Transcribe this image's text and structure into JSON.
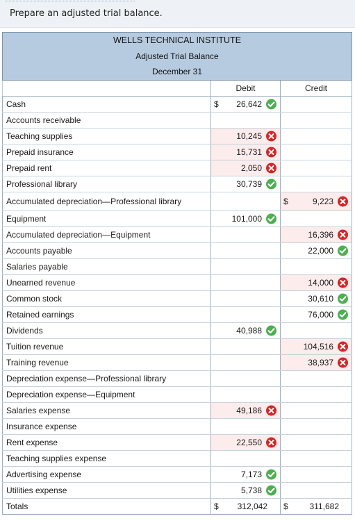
{
  "prompt": "Prepare an adjusted trial balance.",
  "header": {
    "company": "WELLS TECHNICAL INSTITUTE",
    "statement": "Adjusted Trial Balance",
    "date": "December 31"
  },
  "columns": {
    "debit": "Debit",
    "credit": "Credit"
  },
  "rows": [
    {
      "label": "Cash",
      "debit": "26,642",
      "debit_dollar": "$",
      "debit_mark": "check"
    },
    {
      "label": "Accounts receivable"
    },
    {
      "label": "Teaching supplies",
      "debit": "10,245",
      "debit_mark": "x"
    },
    {
      "label": "Prepaid insurance",
      "debit": "15,731",
      "debit_mark": "x"
    },
    {
      "label": "Prepaid rent",
      "debit": "2,050",
      "debit_mark": "x"
    },
    {
      "label": "Professional library",
      "debit": "30,739",
      "debit_mark": "check"
    },
    {
      "label": "Accumulated depreciation—Professional library",
      "credit": "9,223",
      "credit_dollar": "$",
      "credit_mark": "x",
      "tall": true
    },
    {
      "label": "Equipment",
      "debit": "101,000",
      "debit_mark": "check"
    },
    {
      "label": "Accumulated depreciation—Equipment",
      "credit": "16,396",
      "credit_mark": "x"
    },
    {
      "label": "Accounts payable",
      "credit": "22,000",
      "credit_mark": "check"
    },
    {
      "label": "Salaries payable"
    },
    {
      "label": "Unearned revenue",
      "credit": "14,000",
      "credit_mark": "x"
    },
    {
      "label": "Common stock",
      "credit": "30,610",
      "credit_mark": "check"
    },
    {
      "label": "Retained earnings",
      "credit": "76,000",
      "credit_mark": "check"
    },
    {
      "label": "Dividends",
      "debit": "40,988",
      "debit_mark": "check"
    },
    {
      "label": "Tuition revenue",
      "credit": "104,516",
      "credit_mark": "x"
    },
    {
      "label": "Training revenue",
      "credit": "38,937",
      "credit_mark": "x"
    },
    {
      "label": "Depreciation expense—Professional library"
    },
    {
      "label": "Depreciation expense—Equipment"
    },
    {
      "label": "Salaries expense",
      "debit": "49,186",
      "debit_mark": "x"
    },
    {
      "label": "Insurance expense"
    },
    {
      "label": "Rent expense",
      "debit": "22,550",
      "debit_mark": "x"
    },
    {
      "label": "Teaching supplies expense"
    },
    {
      "label": "Advertising expense",
      "debit": "7,173",
      "debit_mark": "check"
    },
    {
      "label": "Utilities expense",
      "debit": "5,738",
      "debit_mark": "check"
    }
  ],
  "totals": {
    "label": "Totals",
    "debit_dollar": "$",
    "debit": "312,042",
    "credit_dollar": "$",
    "credit": "311,682"
  },
  "colors": {
    "header_bg": "#b7cbe0",
    "prompt_bg": "#eef2f6",
    "correct": "#4caf50",
    "incorrect": "#d32626",
    "incorrect_cell_bg": "#fcecec",
    "correct_cell_bg": "#eef7ee"
  }
}
